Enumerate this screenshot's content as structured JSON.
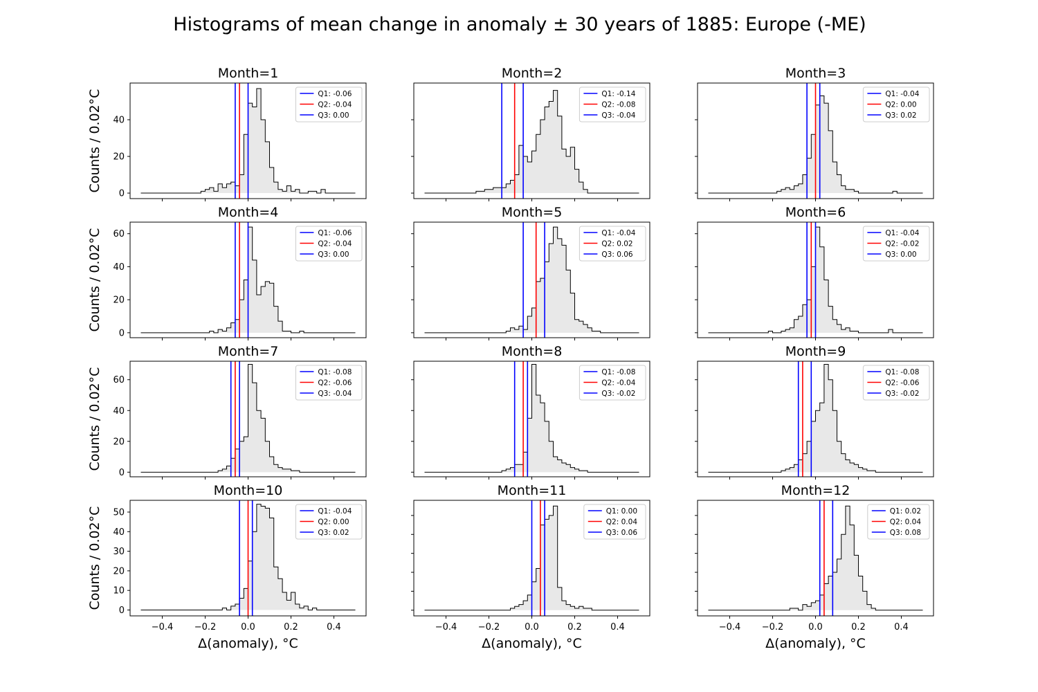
{
  "figure": {
    "suptitle": "Histograms of mean change in anomaly ± 30 years of 1885: Europe (-ME)"
  },
  "chart_data": {
    "type": "histogram-grid",
    "title": "Histograms of mean change in anomaly ± 30 years of 1885: Europe (-ME)",
    "xlabel": "Δ(anomaly), °C",
    "ylabel": "Counts / 0.02°C",
    "xlim": [
      -0.55,
      0.55
    ],
    "xticks": [
      -0.4,
      -0.2,
      0.0,
      0.2,
      0.4
    ],
    "xtick_labels": [
      "−0.4",
      "−0.2",
      "0.0",
      "0.2",
      "0.4"
    ],
    "bin_width": 0.02,
    "bin_start": -0.5,
    "bin_count": 50,
    "colors": {
      "q1": "#0000ff",
      "q2": "#ff0000",
      "q3": "#0000ff",
      "hist_fill": "#e8e8e8",
      "hist_edge": "#000000"
    },
    "panels": [
      {
        "title": "Month=1",
        "ylim": [
          -3,
          60
        ],
        "yticks": [
          0,
          20,
          40
        ],
        "legend": [
          "Q1: -0.06",
          "Q2: -0.04",
          "Q3: 0.00"
        ],
        "quartiles": [
          -0.06,
          -0.04,
          0.0
        ],
        "counts": [
          0,
          0,
          0,
          0,
          0,
          0,
          0,
          0,
          0,
          0,
          0,
          0,
          0,
          0,
          1,
          2,
          3,
          1,
          5,
          3,
          5,
          6,
          4,
          10,
          32,
          49,
          47,
          57,
          40,
          28,
          14,
          6,
          2,
          1,
          4,
          1,
          2,
          0,
          0,
          1,
          1,
          0,
          2,
          0,
          0,
          0,
          0,
          0,
          0,
          0
        ]
      },
      {
        "title": "Month=2",
        "ylim": [
          -3,
          60
        ],
        "yticks": [],
        "legend": [
          "Q1: -0.14",
          "Q2: -0.08",
          "Q3: -0.04"
        ],
        "quartiles": [
          -0.14,
          -0.08,
          -0.04
        ],
        "counts": [
          0,
          0,
          0,
          0,
          0,
          0,
          0,
          0,
          0,
          0,
          0,
          0,
          1,
          1,
          2,
          2,
          3,
          3,
          3,
          5,
          7,
          10,
          26,
          20,
          17,
          23,
          32,
          40,
          47,
          50,
          56,
          42,
          24,
          20,
          25,
          13,
          6,
          2,
          0,
          0,
          0,
          0,
          0,
          0,
          0,
          0,
          0,
          0,
          0,
          0
        ]
      },
      {
        "title": "Month=3",
        "ylim": [
          -3,
          60
        ],
        "yticks": [],
        "legend": [
          "Q1: -0.04",
          "Q2: 0.00",
          "Q3: 0.02"
        ],
        "quartiles": [
          -0.04,
          0.0,
          0.02
        ],
        "counts": [
          0,
          0,
          0,
          0,
          0,
          0,
          0,
          0,
          0,
          0,
          0,
          0,
          0,
          0,
          0,
          0,
          1,
          2,
          3,
          2,
          4,
          5,
          10,
          19,
          32,
          48,
          53,
          49,
          34,
          17,
          10,
          4,
          2,
          2,
          1,
          0,
          0,
          0,
          0,
          0,
          0,
          0,
          0,
          1,
          0,
          0,
          0,
          0,
          0,
          0
        ]
      },
      {
        "title": "Month=4",
        "ylim": [
          -3,
          67
        ],
        "yticks": [
          0,
          20,
          40,
          60
        ],
        "legend": [
          "Q1: -0.06",
          "Q2: -0.04",
          "Q3: 0.00"
        ],
        "quartiles": [
          -0.06,
          -0.04,
          0.0
        ],
        "counts": [
          0,
          0,
          0,
          0,
          0,
          0,
          0,
          0,
          0,
          0,
          0,
          0,
          0,
          0,
          0,
          0,
          1,
          0,
          2,
          1,
          3,
          6,
          8,
          20,
          32,
          64,
          44,
          23,
          28,
          31,
          30,
          16,
          7,
          1,
          1,
          0,
          0,
          1,
          0,
          0,
          0,
          0,
          0,
          0,
          0,
          0,
          0,
          0,
          0,
          0
        ]
      },
      {
        "title": "Month=5",
        "ylim": [
          -3,
          67
        ],
        "yticks": [],
        "legend": [
          "Q1: -0.04",
          "Q2: 0.02",
          "Q3: 0.06"
        ],
        "quartiles": [
          -0.04,
          0.02,
          0.06
        ],
        "counts": [
          0,
          0,
          0,
          0,
          0,
          0,
          0,
          0,
          0,
          0,
          0,
          0,
          0,
          0,
          0,
          0,
          0,
          0,
          0,
          1,
          3,
          2,
          4,
          2,
          10,
          15,
          31,
          33,
          43,
          54,
          64,
          57,
          53,
          38,
          24,
          8,
          7,
          5,
          3,
          1,
          1,
          0,
          0,
          0,
          0,
          0,
          0,
          0,
          0,
          0
        ]
      },
      {
        "title": "Month=6",
        "ylim": [
          -3,
          67
        ],
        "yticks": [],
        "legend": [
          "Q1: -0.04",
          "Q2: -0.02",
          "Q3: 0.00"
        ],
        "quartiles": [
          -0.04,
          -0.02,
          0.0
        ],
        "counts": [
          0,
          0,
          0,
          0,
          0,
          0,
          0,
          0,
          0,
          0,
          0,
          0,
          0,
          0,
          1,
          0,
          0,
          1,
          2,
          3,
          8,
          10,
          17,
          20,
          40,
          64,
          52,
          32,
          16,
          8,
          5,
          2,
          3,
          1,
          1,
          0,
          0,
          0,
          0,
          0,
          0,
          0,
          2,
          0,
          0,
          0,
          0,
          0,
          0,
          0
        ]
      },
      {
        "title": "Month=7",
        "ylim": [
          -3,
          72
        ],
        "yticks": [
          0,
          20,
          40,
          60
        ],
        "legend": [
          "Q1: -0.08",
          "Q2: -0.06",
          "Q3: -0.04"
        ],
        "quartiles": [
          -0.08,
          -0.06,
          -0.04
        ],
        "counts": [
          0,
          0,
          0,
          0,
          0,
          0,
          0,
          0,
          0,
          0,
          0,
          0,
          0,
          0,
          0,
          0,
          0,
          0,
          1,
          2,
          4,
          9,
          15,
          20,
          23,
          70,
          58,
          40,
          35,
          20,
          10,
          5,
          3,
          2,
          2,
          1,
          1,
          0,
          0,
          0,
          0,
          0,
          0,
          0,
          0,
          0,
          0,
          0,
          0,
          0
        ]
      },
      {
        "title": "Month=8",
        "ylim": [
          -3,
          72
        ],
        "yticks": [],
        "legend": [
          "Q1: -0.08",
          "Q2: -0.04",
          "Q3: -0.02"
        ],
        "quartiles": [
          -0.08,
          -0.04,
          -0.02
        ],
        "counts": [
          0,
          0,
          0,
          0,
          0,
          0,
          0,
          0,
          0,
          0,
          0,
          0,
          0,
          0,
          0,
          0,
          0,
          0,
          1,
          2,
          3,
          5,
          5,
          13,
          35,
          70,
          50,
          45,
          33,
          20,
          10,
          8,
          6,
          5,
          3,
          2,
          1,
          1,
          0,
          0,
          0,
          0,
          0,
          0,
          0,
          0,
          0,
          0,
          0,
          0
        ]
      },
      {
        "title": "Month=9",
        "ylim": [
          -3,
          72
        ],
        "yticks": [],
        "legend": [
          "Q1: -0.08",
          "Q2: -0.06",
          "Q3: -0.02"
        ],
        "quartiles": [
          -0.08,
          -0.06,
          -0.02
        ],
        "counts": [
          0,
          0,
          0,
          0,
          0,
          0,
          0,
          0,
          0,
          0,
          0,
          0,
          0,
          0,
          0,
          0,
          0,
          1,
          2,
          3,
          5,
          8,
          12,
          20,
          33,
          40,
          45,
          70,
          60,
          40,
          20,
          12,
          8,
          6,
          5,
          3,
          2,
          1,
          1,
          0,
          0,
          0,
          0,
          0,
          0,
          0,
          0,
          0,
          0,
          0
        ]
      },
      {
        "title": "Month=10",
        "ylim": [
          -3,
          56
        ],
        "yticks": [
          0,
          10,
          20,
          30,
          40,
          50
        ],
        "legend": [
          "Q1: -0.04",
          "Q2: 0.00",
          "Q3: 0.02"
        ],
        "quartiles": [
          -0.04,
          0.0,
          0.02
        ],
        "counts": [
          0,
          0,
          0,
          0,
          0,
          0,
          0,
          0,
          0,
          0,
          0,
          0,
          0,
          0,
          0,
          0,
          0,
          0,
          0,
          1,
          0,
          2,
          3,
          6,
          11,
          25,
          40,
          54,
          53,
          52,
          47,
          22,
          16,
          9,
          5,
          9,
          3,
          1,
          2,
          0,
          1,
          0,
          0,
          0,
          0,
          0,
          0,
          0,
          0,
          0
        ]
      },
      {
        "title": "Month=11",
        "ylim": [
          -3,
          58
        ],
        "yticks": [],
        "legend": [
          "Q1: 0.00",
          "Q2: 0.04",
          "Q3: 0.06"
        ],
        "quartiles": [
          0.0,
          0.04,
          0.06
        ],
        "counts": [
          0,
          0,
          0,
          0,
          0,
          0,
          0,
          0,
          0,
          0,
          0,
          0,
          0,
          0,
          0,
          0,
          0,
          0,
          0,
          0,
          1,
          2,
          3,
          5,
          8,
          15,
          22,
          45,
          48,
          50,
          55,
          12,
          5,
          3,
          2,
          1,
          2,
          1,
          1,
          0,
          0,
          0,
          0,
          0,
          0,
          0,
          0,
          0,
          0,
          0
        ]
      },
      {
        "title": "Month=12",
        "ylim": [
          -3,
          58
        ],
        "yticks": [],
        "legend": [
          "Q1: 0.02",
          "Q2: 0.04",
          "Q3: 0.08"
        ],
        "quartiles": [
          0.02,
          0.04,
          0.08
        ],
        "counts": [
          0,
          0,
          0,
          0,
          0,
          0,
          0,
          0,
          0,
          0,
          0,
          0,
          0,
          0,
          0,
          0,
          0,
          0,
          0,
          1,
          1,
          0,
          3,
          2,
          4,
          5,
          8,
          14,
          18,
          20,
          27,
          40,
          55,
          45,
          29,
          18,
          10,
          3,
          1,
          0,
          0,
          0,
          0,
          0,
          0,
          0,
          0,
          0,
          0,
          0
        ]
      }
    ]
  }
}
